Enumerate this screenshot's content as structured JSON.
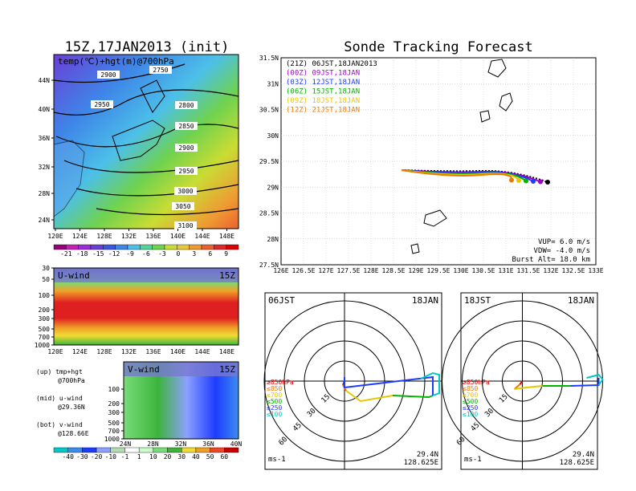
{
  "left_title": "15Z,17JAN2013 (init)",
  "right_title": "Sonde Tracking Forecast",
  "map_panel": {
    "label": "temp(℃)+hgt(m)@700hPa",
    "lat_ticks": [
      "44N",
      "40N",
      "36N",
      "32N",
      "28N",
      "24N"
    ],
    "lon_ticks": [
      "120E",
      "124E",
      "128E",
      "132E",
      "136E",
      "140E",
      "144E",
      "148E"
    ],
    "contours": [
      "2750",
      "2800",
      "2850",
      "2900",
      "2900",
      "2950",
      "2950",
      "3000",
      "3050",
      "3100"
    ]
  },
  "colorbar_top": {
    "labels": [
      "-21",
      "-18",
      "-15",
      "-12",
      "-9",
      "-6",
      "-3",
      "0",
      "3",
      "6",
      "9"
    ],
    "colors": [
      "#9a007a",
      "#c51fb5",
      "#9a2bd6",
      "#6a3fd6",
      "#3f56e0",
      "#3e86e8",
      "#4cc0e8",
      "#55d39a",
      "#6fd24f",
      "#c9dc34",
      "#e8c83a",
      "#ef9a33",
      "#ec6030",
      "#e0282a",
      "#d00"
    ]
  },
  "uwind_panel": {
    "label": "U-wind",
    "time": "15Z",
    "y_ticks": [
      "30",
      "50",
      "100",
      "200",
      "300",
      "500",
      "700",
      "1000"
    ],
    "x_ticks": [
      "120E",
      "124E",
      "128E",
      "132E",
      "136E",
      "140E",
      "144E",
      "148E"
    ]
  },
  "vwind_panel": {
    "label": "V-wind",
    "time": "15Z",
    "y_ticks": [
      "100",
      "200",
      "300",
      "500",
      "700",
      "1000"
    ],
    "x_ticks": [
      "24N",
      "28N",
      "32N",
      "36N",
      "40N"
    ]
  },
  "legend_notes": {
    "up": "(up) tmp+hgt",
    "up2": "@700hPa",
    "mid": "(mid) u-wind",
    "mid2": "@29.36N",
    "bot": "(bot) v-wind",
    "bot2": "@128.66E"
  },
  "colorbar_bottom": {
    "labels": [
      "-40",
      "-30",
      "-20",
      "-10",
      "-1",
      "1",
      "10",
      "20",
      "30",
      "40",
      "50",
      "60"
    ],
    "colors": [
      "#00c8c8",
      "#3c8cf0",
      "#1e3cff",
      "#8ca0ff",
      "#b4dcb4",
      "#ffffff",
      "#c8ffc8",
      "#78dc78",
      "#3cb43c",
      "#f0dc32",
      "#f0a028",
      "#f04628",
      "#c80000"
    ]
  },
  "tracking": {
    "lat_ticks": [
      "31.5N",
      "31N",
      "30.5N",
      "30N",
      "29.5N",
      "29N",
      "28.5N",
      "28N",
      "27.5N"
    ],
    "lon_ticks": [
      "126E",
      "126.5E",
      "127E",
      "127.5E",
      "128E",
      "128.5E",
      "129E",
      "129.5E",
      "130E",
      "130.5E",
      "131E",
      "131.5E",
      "132E",
      "132.5E",
      "133E"
    ],
    "legend": [
      {
        "utc": "(21Z)",
        "jst": "06JST,18JAN2013",
        "color": "#000000"
      },
      {
        "utc": "(00Z)",
        "jst": "09JST,18JAN",
        "color": "#a000c8"
      },
      {
        "utc": "(03Z)",
        "jst": "12JST,18JAN",
        "color": "#1e3cff"
      },
      {
        "utc": "(06Z)",
        "jst": "15JST,18JAN",
        "color": "#00b400"
      },
      {
        "utc": "(09Z)",
        "jst": "18JST,18JAN",
        "color": "#e6c800"
      },
      {
        "utc": "(12Z)",
        "jst": "21JST,18JAN",
        "color": "#f07800"
      }
    ],
    "vup": "VUP= 6.0 m/s",
    "vdw": "VDW= -4.0 m/s",
    "burst": "Burst Alt= 18.0 km"
  },
  "hodo_left": {
    "time": "06JST",
    "date": "18JAN",
    "rings": [
      "15",
      "30",
      "45",
      "60"
    ],
    "levels": [
      "≥850hPa",
      "≤850",
      "≤700",
      "≤500",
      "≤250",
      "≤100"
    ],
    "level_colors": [
      "#e00000",
      "#f07800",
      "#e6c800",
      "#00b400",
      "#1e3cff",
      "#00c8c8"
    ],
    "unit": "ms-1",
    "lat": "29.4N",
    "lon": "128.625E"
  },
  "hodo_right": {
    "time": "18JST",
    "date": "18JAN",
    "rings": [
      "15",
      "30",
      "45",
      "60"
    ],
    "levels": [
      "≥850hPa",
      "≤850",
      "≤700",
      "≤500",
      "≤250",
      "≤100"
    ],
    "level_colors": [
      "#e00000",
      "#f07800",
      "#e6c800",
      "#00b400",
      "#1e3cff",
      "#00c8c8"
    ],
    "unit": "ms-1",
    "lat": "29.4N",
    "lon": "128.625E"
  }
}
